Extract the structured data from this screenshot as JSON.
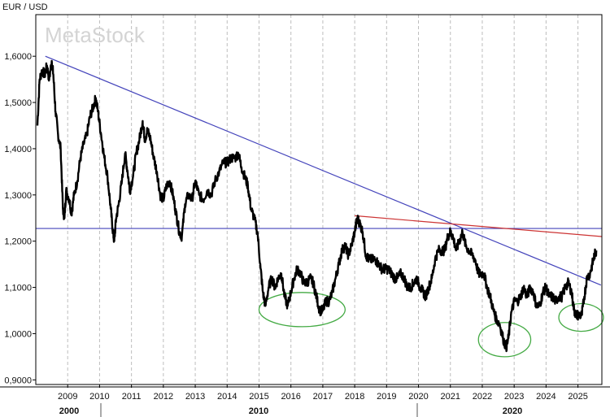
{
  "chart_data": {
    "type": "line",
    "title": "EUR / USD",
    "watermark": "MetaStock",
    "y_ticks": [
      "0,9000",
      "1,0000",
      "1,1000",
      "1,2000",
      "1,3000",
      "1,4000",
      "1,5000",
      "1,6000"
    ],
    "y_tick_values": [
      0.9,
      1.0,
      1.1,
      1.2,
      1.3,
      1.4,
      1.5,
      1.6
    ],
    "ylim": [
      0.89,
      1.69
    ],
    "x_year_labels": [
      "2009",
      "2010",
      "2011",
      "2012",
      "2013",
      "2014",
      "2015",
      "2016",
      "2017",
      "2018",
      "2019",
      "2020",
      "2021",
      "2022",
      "2023",
      "2024",
      "2025"
    ],
    "x_year_values": [
      2009,
      2010,
      2011,
      2012,
      2013,
      2014,
      2015,
      2016,
      2017,
      2018,
      2019,
      2020,
      2021,
      2022,
      2023,
      2024,
      2025
    ],
    "decade_labels": [
      {
        "label": "2000",
        "x": 2008.0
      },
      {
        "label": "2010",
        "x": 2010.0
      },
      {
        "label": "2020",
        "x": 2020.0
      }
    ],
    "xlim": [
      2008.0,
      2025.75
    ],
    "grid": {
      "vertical": true,
      "style": "dashed"
    },
    "series": [
      {
        "points": [
          [
            2008.05,
            1.45
          ],
          [
            2008.12,
            1.55
          ],
          [
            2008.2,
            1.57
          ],
          [
            2008.28,
            1.56
          ],
          [
            2008.35,
            1.58
          ],
          [
            2008.42,
            1.55
          ],
          [
            2008.5,
            1.59
          ],
          [
            2008.55,
            1.56
          ],
          [
            2008.62,
            1.48
          ],
          [
            2008.7,
            1.43
          ],
          [
            2008.78,
            1.4
          ],
          [
            2008.85,
            1.27
          ],
          [
            2008.9,
            1.25
          ],
          [
            2008.95,
            1.31
          ],
          [
            2009.05,
            1.29
          ],
          [
            2009.12,
            1.26
          ],
          [
            2009.2,
            1.3
          ],
          [
            2009.3,
            1.33
          ],
          [
            2009.4,
            1.38
          ],
          [
            2009.5,
            1.41
          ],
          [
            2009.6,
            1.43
          ],
          [
            2009.7,
            1.47
          ],
          [
            2009.8,
            1.49
          ],
          [
            2009.88,
            1.51
          ],
          [
            2009.95,
            1.48
          ],
          [
            2010.05,
            1.43
          ],
          [
            2010.15,
            1.38
          ],
          [
            2010.25,
            1.34
          ],
          [
            2010.35,
            1.27
          ],
          [
            2010.42,
            1.22
          ],
          [
            2010.46,
            1.2
          ],
          [
            2010.52,
            1.25
          ],
          [
            2010.6,
            1.28
          ],
          [
            2010.7,
            1.33
          ],
          [
            2010.8,
            1.39
          ],
          [
            2010.88,
            1.35
          ],
          [
            2010.95,
            1.31
          ],
          [
            2011.05,
            1.34
          ],
          [
            2011.15,
            1.39
          ],
          [
            2011.25,
            1.42
          ],
          [
            2011.35,
            1.46
          ],
          [
            2011.42,
            1.42
          ],
          [
            2011.5,
            1.44
          ],
          [
            2011.6,
            1.42
          ],
          [
            2011.7,
            1.38
          ],
          [
            2011.8,
            1.35
          ],
          [
            2011.9,
            1.3
          ],
          [
            2012.0,
            1.29
          ],
          [
            2012.1,
            1.32
          ],
          [
            2012.2,
            1.33
          ],
          [
            2012.3,
            1.3
          ],
          [
            2012.4,
            1.26
          ],
          [
            2012.5,
            1.22
          ],
          [
            2012.58,
            1.21
          ],
          [
            2012.68,
            1.28
          ],
          [
            2012.78,
            1.3
          ],
          [
            2012.9,
            1.29
          ],
          [
            2013.0,
            1.33
          ],
          [
            2013.12,
            1.3
          ],
          [
            2013.25,
            1.29
          ],
          [
            2013.38,
            1.31
          ],
          [
            2013.5,
            1.3
          ],
          [
            2013.62,
            1.33
          ],
          [
            2013.75,
            1.35
          ],
          [
            2013.88,
            1.37
          ],
          [
            2014.0,
            1.37
          ],
          [
            2014.12,
            1.38
          ],
          [
            2014.25,
            1.38
          ],
          [
            2014.35,
            1.39
          ],
          [
            2014.45,
            1.36
          ],
          [
            2014.55,
            1.34
          ],
          [
            2014.65,
            1.32
          ],
          [
            2014.75,
            1.27
          ],
          [
            2014.85,
            1.25
          ],
          [
            2014.95,
            1.22
          ],
          [
            2015.05,
            1.14
          ],
          [
            2015.12,
            1.09
          ],
          [
            2015.2,
            1.06
          ],
          [
            2015.3,
            1.1
          ],
          [
            2015.4,
            1.12
          ],
          [
            2015.5,
            1.1
          ],
          [
            2015.6,
            1.12
          ],
          [
            2015.7,
            1.13
          ],
          [
            2015.8,
            1.08
          ],
          [
            2015.9,
            1.06
          ],
          [
            2016.0,
            1.09
          ],
          [
            2016.1,
            1.12
          ],
          [
            2016.2,
            1.14
          ],
          [
            2016.3,
            1.13
          ],
          [
            2016.4,
            1.11
          ],
          [
            2016.5,
            1.11
          ],
          [
            2016.6,
            1.12
          ],
          [
            2016.7,
            1.11
          ],
          [
            2016.8,
            1.08
          ],
          [
            2016.9,
            1.05
          ],
          [
            2017.0,
            1.05
          ],
          [
            2017.1,
            1.07
          ],
          [
            2017.2,
            1.07
          ],
          [
            2017.3,
            1.09
          ],
          [
            2017.4,
            1.12
          ],
          [
            2017.5,
            1.15
          ],
          [
            2017.6,
            1.18
          ],
          [
            2017.7,
            1.19
          ],
          [
            2017.8,
            1.17
          ],
          [
            2017.9,
            1.19
          ],
          [
            2018.0,
            1.22
          ],
          [
            2018.08,
            1.25
          ],
          [
            2018.15,
            1.24
          ],
          [
            2018.25,
            1.22
          ],
          [
            2018.35,
            1.17
          ],
          [
            2018.45,
            1.16
          ],
          [
            2018.55,
            1.16
          ],
          [
            2018.65,
            1.16
          ],
          [
            2018.75,
            1.15
          ],
          [
            2018.85,
            1.14
          ],
          [
            2018.95,
            1.14
          ],
          [
            2019.05,
            1.14
          ],
          [
            2019.15,
            1.13
          ],
          [
            2019.25,
            1.12
          ],
          [
            2019.35,
            1.12
          ],
          [
            2019.45,
            1.13
          ],
          [
            2019.55,
            1.12
          ],
          [
            2019.65,
            1.1
          ],
          [
            2019.75,
            1.1
          ],
          [
            2019.85,
            1.11
          ],
          [
            2019.95,
            1.12
          ],
          [
            2020.05,
            1.1
          ],
          [
            2020.15,
            1.09
          ],
          [
            2020.22,
            1.08
          ],
          [
            2020.32,
            1.1
          ],
          [
            2020.42,
            1.12
          ],
          [
            2020.52,
            1.16
          ],
          [
            2020.62,
            1.18
          ],
          [
            2020.72,
            1.18
          ],
          [
            2020.82,
            1.18
          ],
          [
            2020.92,
            1.21
          ],
          [
            2021.0,
            1.22
          ],
          [
            2021.08,
            1.21
          ],
          [
            2021.18,
            1.18
          ],
          [
            2021.28,
            1.2
          ],
          [
            2021.38,
            1.22
          ],
          [
            2021.48,
            1.19
          ],
          [
            2021.58,
            1.18
          ],
          [
            2021.68,
            1.17
          ],
          [
            2021.78,
            1.16
          ],
          [
            2021.88,
            1.13
          ],
          [
            2021.95,
            1.13
          ],
          [
            2022.05,
            1.13
          ],
          [
            2022.15,
            1.1
          ],
          [
            2022.25,
            1.08
          ],
          [
            2022.35,
            1.05
          ],
          [
            2022.45,
            1.03
          ],
          [
            2022.55,
            1.02
          ],
          [
            2022.65,
            0.99
          ],
          [
            2022.75,
            0.97
          ],
          [
            2022.82,
            0.99
          ],
          [
            2022.9,
            1.04
          ],
          [
            2023.0,
            1.07
          ],
          [
            2023.1,
            1.07
          ],
          [
            2023.2,
            1.08
          ],
          [
            2023.3,
            1.1
          ],
          [
            2023.4,
            1.08
          ],
          [
            2023.5,
            1.1
          ],
          [
            2023.6,
            1.09
          ],
          [
            2023.7,
            1.06
          ],
          [
            2023.8,
            1.06
          ],
          [
            2023.9,
            1.09
          ],
          [
            2024.0,
            1.1
          ],
          [
            2024.1,
            1.08
          ],
          [
            2024.2,
            1.08
          ],
          [
            2024.3,
            1.07
          ],
          [
            2024.4,
            1.08
          ],
          [
            2024.5,
            1.08
          ],
          [
            2024.6,
            1.1
          ],
          [
            2024.7,
            1.11
          ],
          [
            2024.8,
            1.09
          ],
          [
            2024.88,
            1.05
          ],
          [
            2024.95,
            1.04
          ],
          [
            2025.05,
            1.04
          ],
          [
            2025.12,
            1.04
          ],
          [
            2025.2,
            1.08
          ],
          [
            2025.28,
            1.12
          ],
          [
            2025.38,
            1.13
          ],
          [
            2025.45,
            1.15
          ],
          [
            2025.52,
            1.17
          ],
          [
            2025.58,
            1.18
          ]
        ],
        "color": "#000000"
      }
    ],
    "annotations": {
      "lines": [
        {
          "id": "descending-trendline",
          "color": "#4444bb",
          "from": [
            2008.3,
            1.6
          ],
          "to": [
            2025.72,
            1.105
          ]
        },
        {
          "id": "horizontal-support-line",
          "color": "#4444bb",
          "from": [
            2008.0,
            1.2275
          ],
          "to": [
            2025.75,
            1.2275
          ]
        },
        {
          "id": "red-trendline",
          "color": "#cc3333",
          "from": [
            2018.0,
            1.255
          ],
          "to": [
            2025.75,
            1.21
          ]
        }
      ],
      "ellipses": [
        {
          "id": "green-circle-2015-2017",
          "color": "#44aa44",
          "center": [
            2016.35,
            1.052
          ],
          "rx_years": 1.35,
          "ry_value": 0.037
        },
        {
          "id": "green-circle-2022-2023",
          "color": "#44aa44",
          "center": [
            2022.7,
            0.987
          ],
          "rx_years": 0.82,
          "ry_value": 0.037
        },
        {
          "id": "green-circle-2025",
          "color": "#44aa44",
          "center": [
            2025.1,
            1.035
          ],
          "rx_years": 0.7,
          "ry_value": 0.03
        }
      ]
    }
  }
}
